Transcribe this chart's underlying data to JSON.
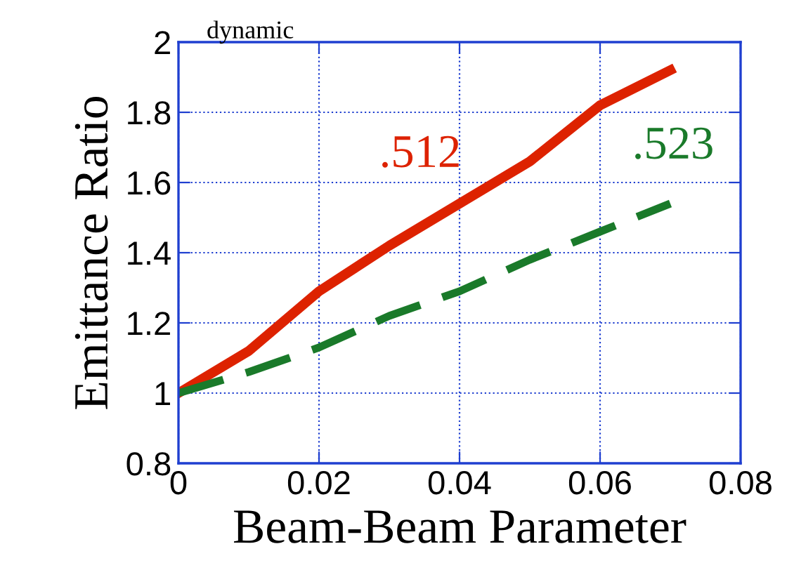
{
  "chart_data": {
    "type": "line",
    "title": "dynamic",
    "xlabel": "Beam-Beam Parameter",
    "ylabel": "Emittance Ratio",
    "x": [
      0,
      0.01,
      0.02,
      0.03,
      0.04,
      0.05,
      0.06,
      0.07
    ],
    "series": [
      {
        "name": ".512",
        "color": "#dd2200",
        "line_style": "solid",
        "values": [
          1.0,
          1.12,
          1.29,
          1.42,
          1.54,
          1.66,
          1.82,
          1.92
        ]
      },
      {
        "name": ".523",
        "color": "#1a7a2a",
        "line_style": "dashed",
        "values": [
          1.0,
          1.06,
          1.13,
          1.22,
          1.29,
          1.38,
          1.46,
          1.54
        ]
      }
    ],
    "xlim": [
      0,
      0.08
    ],
    "xticks": [
      0,
      0.02,
      0.04,
      0.06,
      0.08
    ],
    "ylim": [
      0.8,
      2
    ],
    "yticks": [
      0.8,
      1,
      1.2,
      1.4,
      1.6,
      1.8,
      2
    ],
    "grid": true,
    "legend": false
  }
}
